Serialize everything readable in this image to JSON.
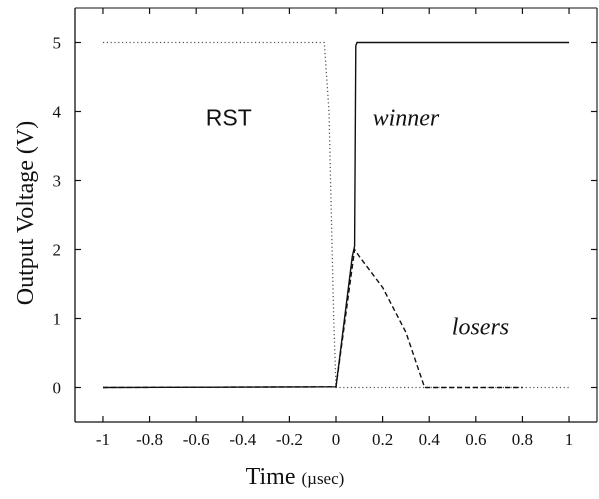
{
  "chart_data": {
    "type": "line",
    "title": "",
    "xlabel": "Time",
    "xlabel_unit": "(µsec)",
    "ylabel": "Output Voltage (V)",
    "xlim": [
      -1.12,
      1.12
    ],
    "ylim": [
      -0.5,
      5.5
    ],
    "xticks": [
      -1,
      -0.8,
      -0.6,
      -0.4,
      -0.2,
      0,
      0.2,
      0.4,
      0.6,
      0.8,
      1
    ],
    "xtick_labels": [
      "-1",
      "-0.8",
      "-0.6",
      "-0.4",
      "-0.2",
      "0",
      "0.2",
      "0.4",
      "0.6",
      "0.8",
      "1"
    ],
    "yticks": [
      0,
      1,
      2,
      3,
      4,
      5
    ],
    "ytick_labels": [
      "0",
      "1",
      "2",
      "3",
      "4",
      "5"
    ],
    "grid": false,
    "legend": "none",
    "series": [
      {
        "name": "RST",
        "style": "dotted",
        "color": "#555555",
        "points": [
          [
            -1,
            5
          ],
          [
            -0.05,
            5
          ],
          [
            -0.03,
            4.0
          ],
          [
            -0.01,
            1.0
          ],
          [
            0.0,
            0.0
          ],
          [
            1,
            0
          ]
        ]
      },
      {
        "name": "winner",
        "style": "solid",
        "color": "#111111",
        "points": [
          [
            -1,
            0
          ],
          [
            0.0,
            0.01
          ],
          [
            0.07,
            1.9
          ],
          [
            0.08,
            2.05
          ],
          [
            0.085,
            4.95
          ],
          [
            0.09,
            5.0
          ],
          [
            1,
            5.0
          ]
        ]
      },
      {
        "name": "losers",
        "style": "dashed",
        "color": "#111111",
        "points": [
          [
            -1,
            0
          ],
          [
            0.0,
            0.01
          ],
          [
            0.08,
            2.0
          ],
          [
            0.1,
            1.9
          ],
          [
            0.2,
            1.45
          ],
          [
            0.3,
            0.8
          ],
          [
            0.38,
            0.0
          ],
          [
            0.8,
            0.0
          ]
        ]
      }
    ],
    "annotations": [
      {
        "text": "RST",
        "x": -0.46,
        "y": 3.8,
        "style": "normal"
      },
      {
        "text": "winner",
        "x": 0.3,
        "y": 3.8,
        "style": "italic"
      },
      {
        "text": "losers",
        "x": 0.62,
        "y": 0.77,
        "style": "italic"
      }
    ]
  }
}
